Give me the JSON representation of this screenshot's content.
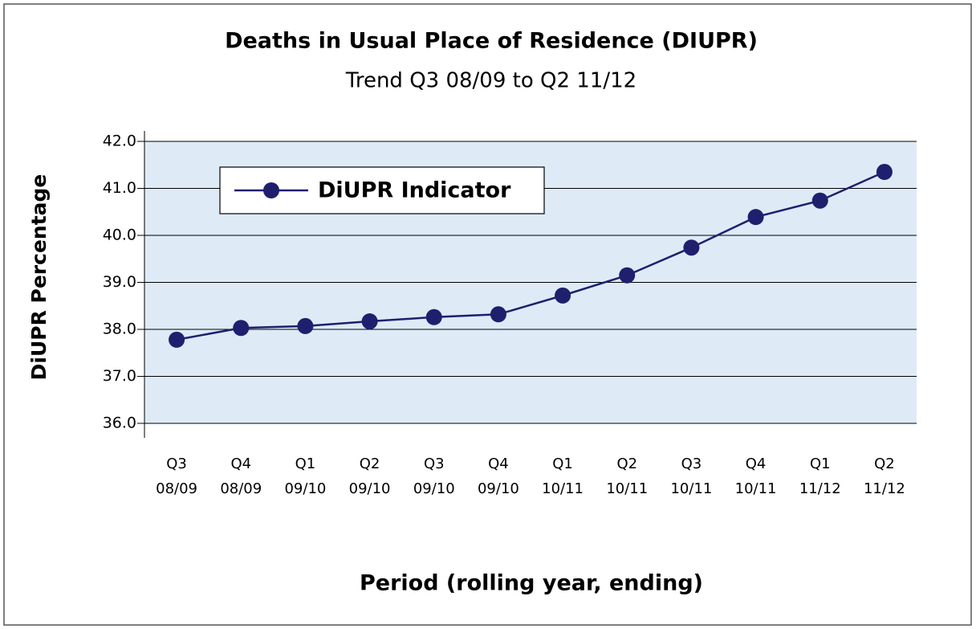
{
  "chart_data": {
    "type": "line",
    "title": "Deaths in Usual Place of Residence (DIUPR)",
    "subtitle": "Trend Q3 08/09 to Q2 11/12",
    "y_label": "DiUPR Percentage",
    "x_label": "Period (rolling year, ending)",
    "categories": [
      "Q3 08/09",
      "Q4 08/09",
      "Q1 09/10",
      "Q2 09/10",
      "Q3 09/10",
      "Q4 09/10",
      "Q1 10/11",
      "Q2 10/11",
      "Q3 10/11",
      "Q4 10/11",
      "Q1 11/12",
      "Q2 11/12"
    ],
    "series": [
      {
        "name": "DiUPR Indicator",
        "color": "#1f1f6e",
        "values": [
          37.78,
          38.03,
          38.07,
          38.17,
          38.26,
          38.32,
          38.72,
          39.15,
          39.74,
          40.39,
          40.74,
          41.35
        ]
      }
    ],
    "ylim": [
      36,
      42
    ],
    "yticks": [
      {
        "value": 36,
        "label": "36.0"
      },
      {
        "value": 37,
        "label": "37.0"
      },
      {
        "value": 38,
        "label": "38.0"
      },
      {
        "value": 39,
        "label": "39.0"
      },
      {
        "value": 40,
        "label": "40.0"
      },
      {
        "value": 41,
        "label": "41.0"
      },
      {
        "value": 42,
        "label": "42.0"
      }
    ],
    "grid": true,
    "legend": "upper left",
    "background": "#deebf7"
  }
}
